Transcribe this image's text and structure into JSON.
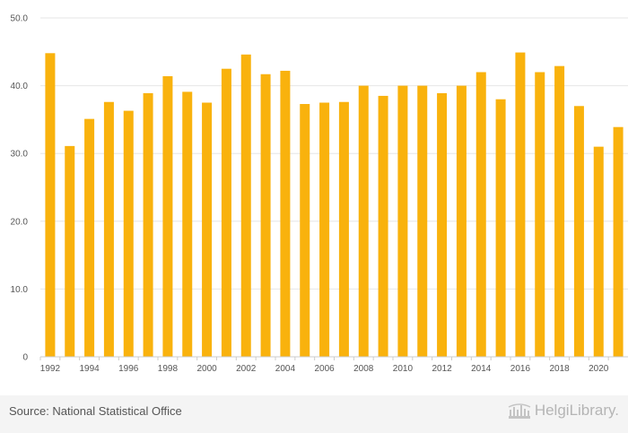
{
  "chart_data": {
    "type": "bar",
    "categories": [
      "1992",
      "1993",
      "1994",
      "1995",
      "1996",
      "1997",
      "1998",
      "1999",
      "2000",
      "2001",
      "2002",
      "2003",
      "2004",
      "2005",
      "2006",
      "2007",
      "2008",
      "2009",
      "2010",
      "2011",
      "2012",
      "2013",
      "2014",
      "2015",
      "2016",
      "2017",
      "2018",
      "2019",
      "2020",
      "2021"
    ],
    "x_tick_labels": [
      "1992",
      "1994",
      "1996",
      "1998",
      "2000",
      "2002",
      "2004",
      "2006",
      "2008",
      "2010",
      "2012",
      "2014",
      "2016",
      "2018",
      "2020"
    ],
    "values": [
      44.8,
      31.1,
      35.1,
      37.6,
      36.3,
      38.9,
      41.4,
      39.1,
      37.5,
      42.5,
      44.6,
      41.7,
      42.2,
      37.3,
      37.5,
      37.6,
      40.0,
      38.5,
      40.0,
      40.0,
      38.9,
      40.0,
      42.0,
      38.0,
      44.9,
      42.0,
      42.9,
      37.0,
      31.0,
      33.9
    ],
    "ylim": [
      0,
      50
    ],
    "y_ticks": [
      0,
      10,
      20,
      30,
      40,
      50
    ],
    "y_tick_labels": [
      "0",
      "10.0",
      "20.0",
      "30.0",
      "40.0",
      "50.0"
    ],
    "grid": true,
    "bar_color": "#f9b20d",
    "title": "",
    "xlabel": "",
    "ylabel": ""
  },
  "footer": {
    "source": "Source: National Statistical Office",
    "brand": "HelgiLibrary."
  },
  "icons": {
    "brand": "building-icon"
  }
}
